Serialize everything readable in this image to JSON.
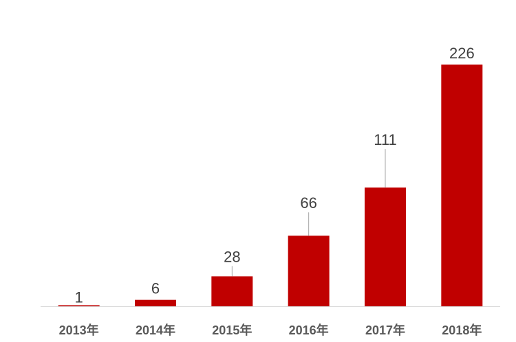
{
  "chart_data": {
    "type": "bar",
    "categories": [
      "2013年",
      "2014年",
      "2015年",
      "2016年",
      "2017年",
      "2018年"
    ],
    "values": [
      1,
      6,
      28,
      66,
      111,
      226
    ],
    "color": "#c00000"
  }
}
